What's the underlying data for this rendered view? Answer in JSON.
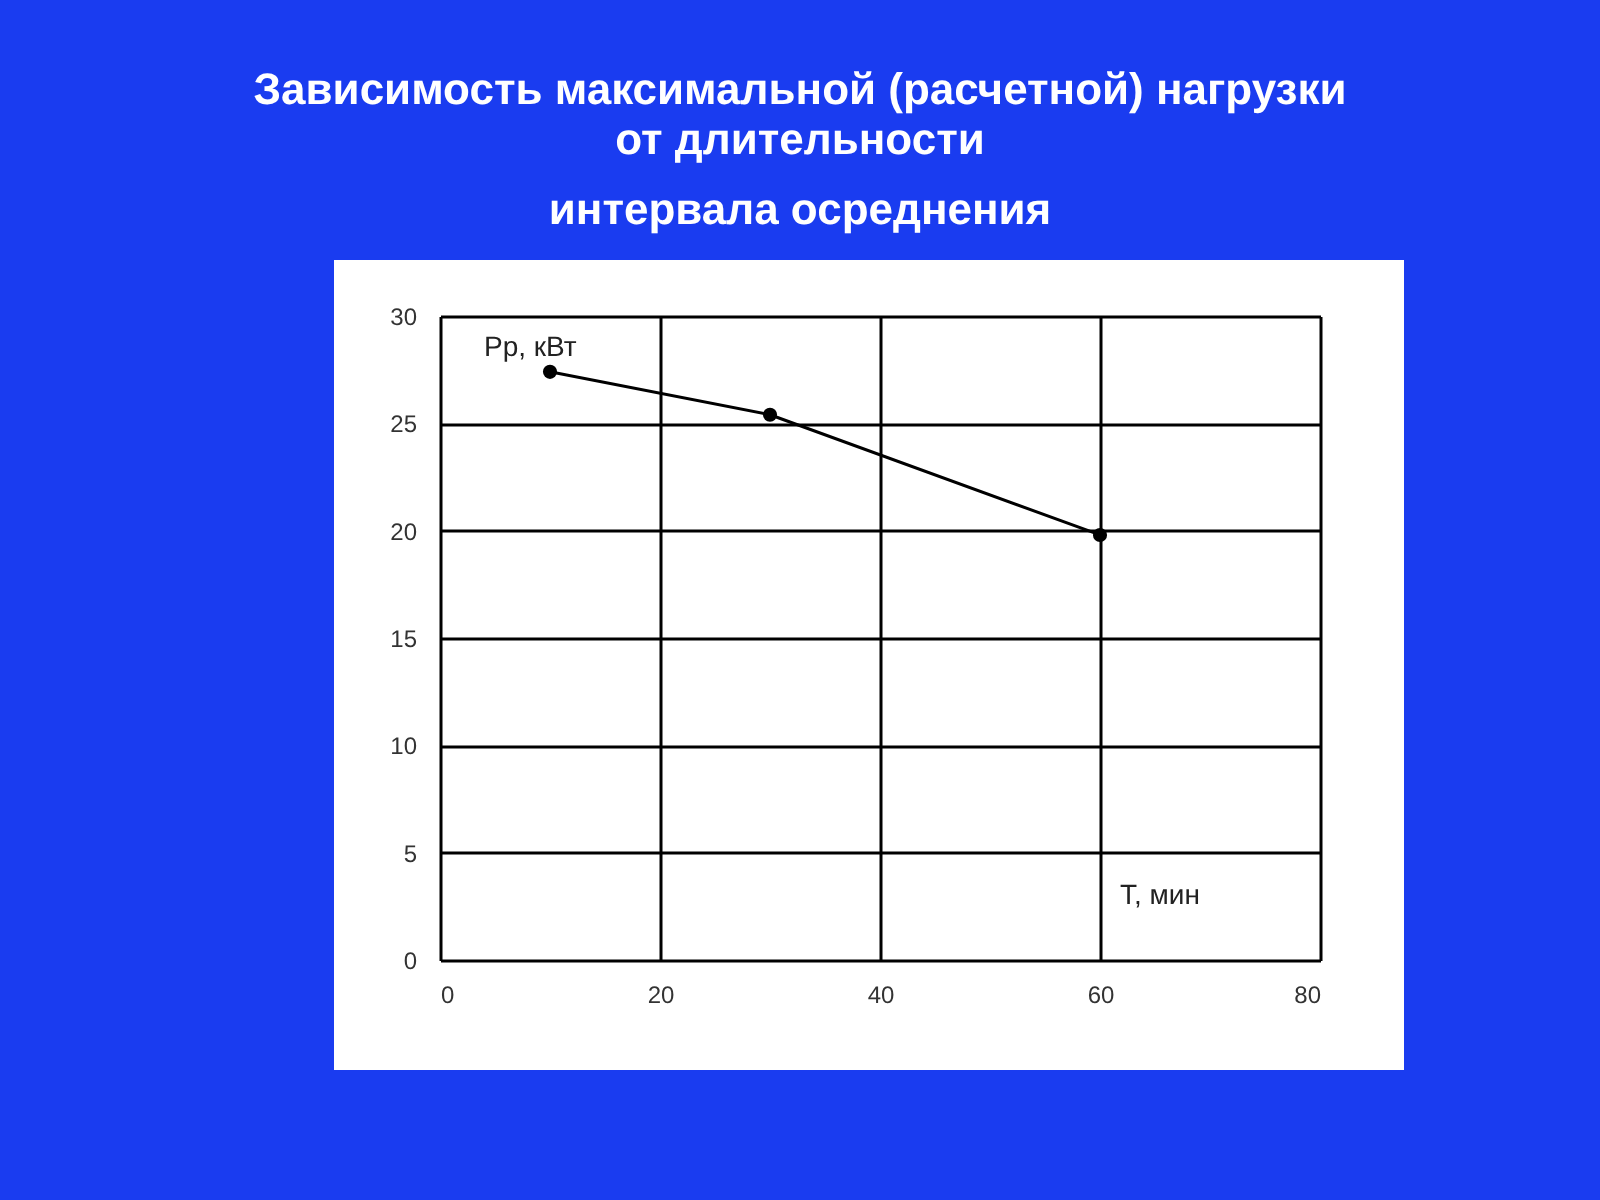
{
  "chart_data": {
    "type": "line",
    "title": "Зависимость максимальной (расчетной) нагрузки\nот длительности\nинтервала осреднения",
    "xlabel": "T, мин",
    "ylabel": "Pр, кВт",
    "x": [
      10,
      30,
      60
    ],
    "series": [
      {
        "color": "#000000",
        "values": [
          27.4,
          25.4,
          19.8
        ]
      }
    ],
    "xlim": [
      0,
      80
    ],
    "xticks": [
      0,
      20,
      40,
      60,
      80
    ],
    "ylim": [
      0,
      30
    ],
    "yticks": [
      0,
      5,
      10,
      15,
      20,
      25,
      30
    ],
    "grid": true,
    "marker": "circle",
    "line_style": "solid"
  }
}
